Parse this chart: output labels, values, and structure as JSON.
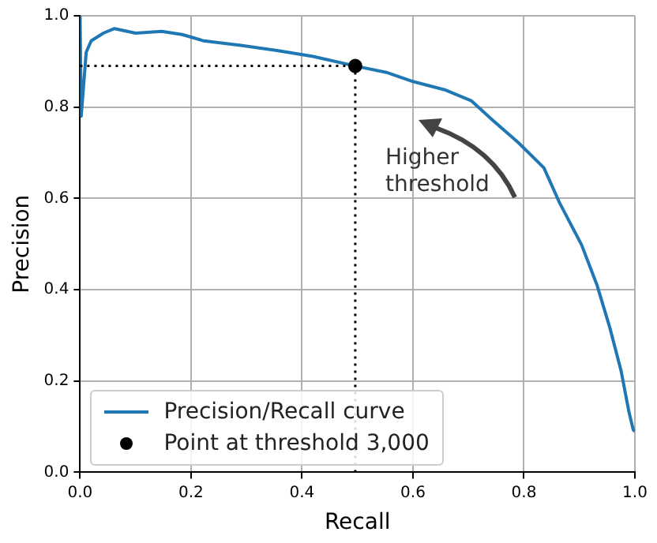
{
  "chart_data": {
    "type": "line",
    "xlabel": "Recall",
    "ylabel": "Precision",
    "series": [
      {
        "name": "Precision/Recall curve",
        "type": "line",
        "color": "#1f77b4",
        "marker": "none",
        "x": [
          0,
          0.002,
          0.011,
          0.02,
          0.042,
          0.062,
          0.1,
          0.147,
          0.184,
          0.223,
          0.29,
          0.355,
          0.42,
          0.496,
          0.552,
          0.6,
          0.657,
          0.705,
          0.742,
          0.79,
          0.836,
          0.864,
          0.904,
          0.932,
          0.955,
          0.975,
          0.989,
          0.997,
          1.0
        ],
        "values": [
          1.0,
          0.78,
          0.92,
          0.945,
          0.962,
          0.972,
          0.962,
          0.966,
          0.959,
          0.945,
          0.935,
          0.924,
          0.911,
          0.89,
          0.876,
          0.856,
          0.838,
          0.814,
          0.773,
          0.722,
          0.667,
          0.591,
          0.498,
          0.409,
          0.316,
          0.223,
          0.134,
          0.093,
          0.09
        ]
      },
      {
        "name": "Point at threshold 3,000",
        "type": "scatter",
        "color": "#000000",
        "marker": "circle",
        "x": [
          0.496
        ],
        "values": [
          0.89
        ]
      }
    ],
    "ref_lines": [
      {
        "axis": "y",
        "value": 0.89,
        "line_style": "dotted",
        "color": "#000000"
      },
      {
        "axis": "x",
        "value": 0.496,
        "line_style": "dotted",
        "color": "#000000"
      }
    ],
    "annotations": [
      "Higher\nthreshold"
    ],
    "xlim": [
      0,
      1
    ],
    "ylim": [
      0,
      1
    ],
    "xticks": [
      {
        "value": 0,
        "label": "0.0"
      },
      0.2,
      0.4,
      0.6,
      0.8,
      {
        "value": 1,
        "label": "1.0"
      }
    ],
    "yticks": [
      {
        "value": 0,
        "label": "0.0"
      },
      0.2,
      0.4,
      0.6,
      0.8,
      {
        "value": 1,
        "label": "1.0"
      }
    ],
    "grid": true,
    "legend": "bottom left"
  }
}
